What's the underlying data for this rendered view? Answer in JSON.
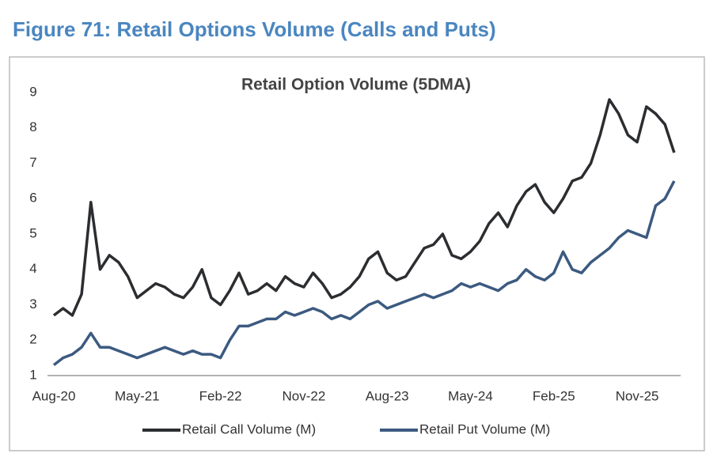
{
  "heading": "Figure 71: Retail Options Volume (Calls and Puts)",
  "chart_data": {
    "type": "line",
    "title": "Retail Option Volume (5DMA)",
    "categories": [
      "Aug-20",
      null,
      null,
      null,
      null,
      null,
      null,
      null,
      null,
      "May-21",
      null,
      null,
      null,
      null,
      null,
      null,
      null,
      null,
      "Feb-22",
      null,
      null,
      null,
      null,
      null,
      null,
      null,
      null,
      "Nov-22",
      null,
      null,
      null,
      null,
      null,
      null,
      null,
      null,
      "Aug-23",
      null,
      null,
      null,
      null,
      null,
      null,
      null,
      null,
      "May-24",
      null,
      null,
      null,
      null,
      null,
      null,
      null,
      null,
      "Feb-25",
      null,
      null,
      null,
      null,
      null,
      null,
      null,
      null,
      "Nov-25",
      null,
      null,
      null,
      null
    ],
    "series": [
      {
        "name": "Retail Call Volume (M)",
        "color": "#2b2d30",
        "values": [
          2.7,
          2.9,
          2.7,
          3.3,
          5.9,
          4.0,
          4.4,
          4.2,
          3.8,
          3.2,
          3.4,
          3.6,
          3.5,
          3.3,
          3.2,
          3.5,
          4.0,
          3.2,
          3.0,
          3.4,
          3.9,
          3.3,
          3.4,
          3.6,
          3.4,
          3.8,
          3.6,
          3.5,
          3.9,
          3.6,
          3.2,
          3.3,
          3.5,
          3.8,
          4.3,
          4.5,
          3.9,
          3.7,
          3.8,
          4.2,
          4.6,
          4.7,
          5.0,
          4.4,
          4.3,
          4.5,
          4.8,
          5.3,
          5.6,
          5.2,
          5.8,
          6.2,
          6.4,
          5.9,
          5.6,
          6.0,
          6.5,
          6.6,
          7.0,
          7.8,
          8.8,
          8.4,
          7.8,
          7.6,
          8.6,
          8.4,
          8.1,
          7.3
        ]
      },
      {
        "name": "Retail Put Volume (M)",
        "color": "#3c5a80",
        "values": [
          1.3,
          1.5,
          1.6,
          1.8,
          2.2,
          1.8,
          1.8,
          1.7,
          1.6,
          1.5,
          1.6,
          1.7,
          1.8,
          1.7,
          1.6,
          1.7,
          1.6,
          1.6,
          1.5,
          2.0,
          2.4,
          2.4,
          2.5,
          2.6,
          2.6,
          2.8,
          2.7,
          2.8,
          2.9,
          2.8,
          2.6,
          2.7,
          2.6,
          2.8,
          3.0,
          3.1,
          2.9,
          3.0,
          3.1,
          3.2,
          3.3,
          3.2,
          3.3,
          3.4,
          3.6,
          3.5,
          3.6,
          3.5,
          3.4,
          3.6,
          3.7,
          4.0,
          3.8,
          3.7,
          3.9,
          4.5,
          4.0,
          3.9,
          4.2,
          4.4,
          4.6,
          4.9,
          5.1,
          5.0,
          4.9,
          5.8,
          6.0,
          6.5
        ]
      }
    ],
    "ylim": [
      1,
      9.5
    ],
    "yticks": [
      1,
      2,
      3,
      4,
      5,
      6,
      7,
      8,
      9
    ],
    "grid": false,
    "legend": "bottom"
  }
}
